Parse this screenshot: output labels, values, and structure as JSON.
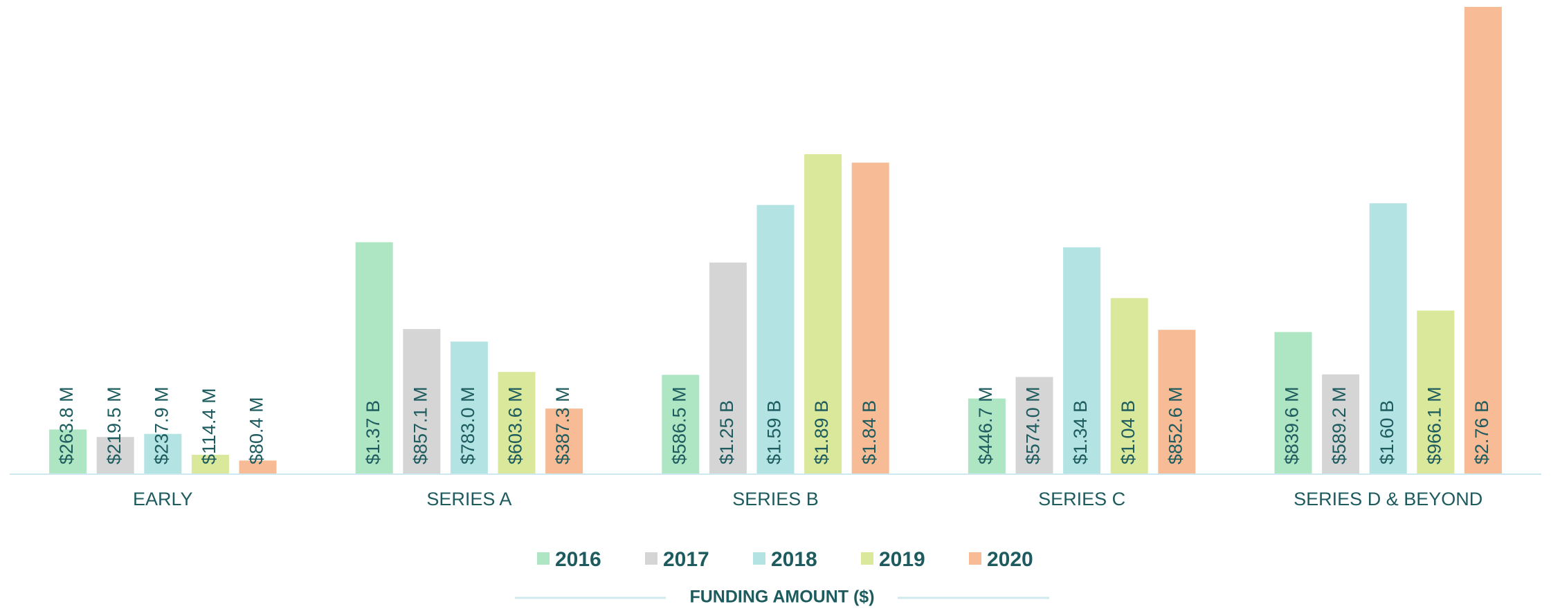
{
  "chart_data": {
    "type": "bar",
    "x_label": "FUNDING AMOUNT ($)",
    "categories": [
      "EARLY",
      "SERIES A",
      "SERIES B",
      "SERIES C",
      "SERIES D & BEYOND"
    ],
    "series": [
      {
        "name": "2016",
        "color": "#aee6c4",
        "values": [
          263.8,
          1370,
          586.5,
          446.7,
          839.6
        ],
        "value_labels": [
          "$263.8 M",
          "$1.37 B",
          "$586.5 M",
          "$446.7 M",
          "$839.6 M"
        ]
      },
      {
        "name": "2017",
        "color": "#d5d5d5",
        "values": [
          219.5,
          857.1,
          1250,
          574.0,
          589.2
        ],
        "value_labels": [
          "$219.5 M",
          "$857.1 M",
          "$1.25 B",
          "$574.0 M",
          "$589.2 M"
        ]
      },
      {
        "name": "2018",
        "color": "#b3e3e3",
        "values": [
          237.9,
          783.0,
          1590,
          1340,
          1600
        ],
        "value_labels": [
          "$237.9 M",
          "$783.0 M",
          "$1.59 B",
          "$1.34 B",
          "$1.60 B"
        ]
      },
      {
        "name": "2019",
        "color": "#d9e89a",
        "values": [
          114.4,
          603.6,
          1890,
          1040,
          966.1
        ],
        "value_labels": [
          "$114.4 M",
          "$603.6 M",
          "$1.89 B",
          "$1.04 B",
          "$966.1 M"
        ]
      },
      {
        "name": "2020",
        "color": "#f7bc96",
        "values": [
          80.4,
          387.3,
          1840,
          852.6,
          2760
        ],
        "value_labels": [
          "$80.4 M",
          "$387.3 M",
          "$1.84 B",
          "$852.6 M",
          "$2.76 B"
        ]
      }
    ],
    "ylim": [
      0,
      2760
    ]
  }
}
